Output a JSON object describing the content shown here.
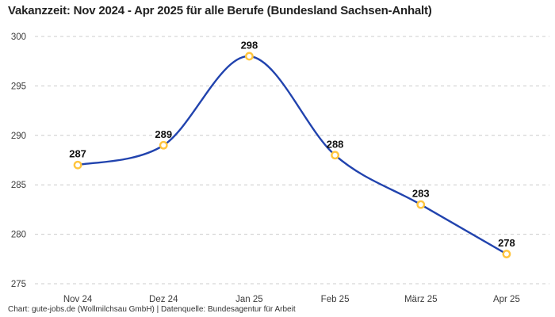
{
  "title": "Vakanzzeit: Nov 2024 - Apr 2025 für alle Berufe (Bundesland Sachsen-Anhalt)",
  "footer": "Chart: gute-jobs.de (Wollmilchsau GmbH) | Datenquelle: Bundesagentur für Arbeit",
  "colors": {
    "background": "#ffffff",
    "line": "#2143ae",
    "marker_stroke": "#ffc53e",
    "marker_fill": "#ffffff",
    "grid": "#cccccc",
    "axis_text": "#3c3c3c",
    "point_label_text": "#111111",
    "title_text": "#222222"
  },
  "chart_data": {
    "type": "line",
    "categories": [
      "Nov 24",
      "Dez 24",
      "Jan 25",
      "Feb 25",
      "März 25",
      "Apr 25"
    ],
    "values": [
      287,
      289,
      298,
      288,
      283,
      278
    ],
    "series": [
      {
        "name": "Vakanzzeit",
        "values": [
          287,
          289,
          298,
          288,
          283,
          278
        ]
      }
    ],
    "point_labels": [
      "287",
      "289",
      "298",
      "288",
      "283",
      "278"
    ],
    "title": "Vakanzzeit: Nov 2024 - Apr 2025 für alle Berufe (Bundesland Sachsen-Anhalt)",
    "xlabel": "",
    "ylabel": "",
    "ylim": [
      275,
      300
    ],
    "yticks": [
      275,
      280,
      285,
      290,
      295,
      300
    ],
    "grid": "horizontal-dashed",
    "legend": "none",
    "smooth": true
  }
}
